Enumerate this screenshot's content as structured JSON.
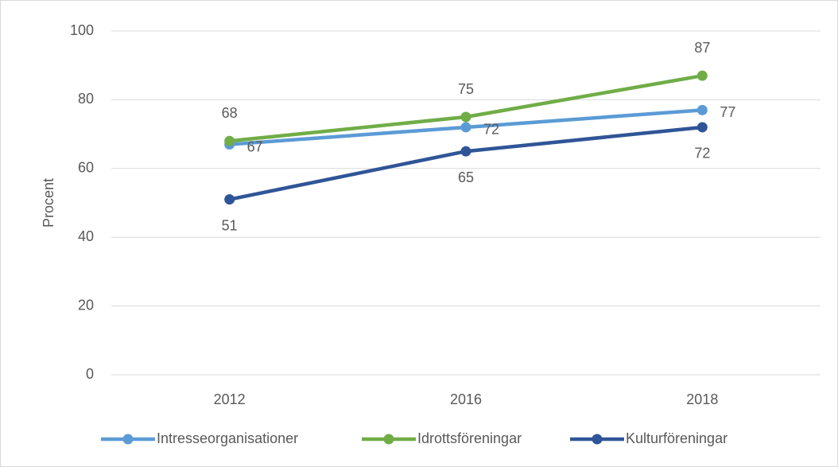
{
  "chart_data": {
    "type": "line",
    "y_label": "Procent",
    "categories": [
      "2012",
      "2016",
      "2018"
    ],
    "series": [
      {
        "name": "Intresseorganisationer",
        "color": "#5b9bd5",
        "values": [
          67,
          72,
          77
        ]
      },
      {
        "name": "Idrottsföreningar",
        "color": "#70ad47",
        "values": [
          68,
          75,
          87
        ]
      },
      {
        "name": "Kulturföreningar",
        "color": "#2f5597",
        "values": [
          51,
          65,
          72
        ]
      }
    ],
    "ylim": [
      0,
      100
    ],
    "yticks": [
      0,
      20,
      40,
      60,
      80,
      100
    ],
    "grid": true,
    "legend": "bottom"
  }
}
